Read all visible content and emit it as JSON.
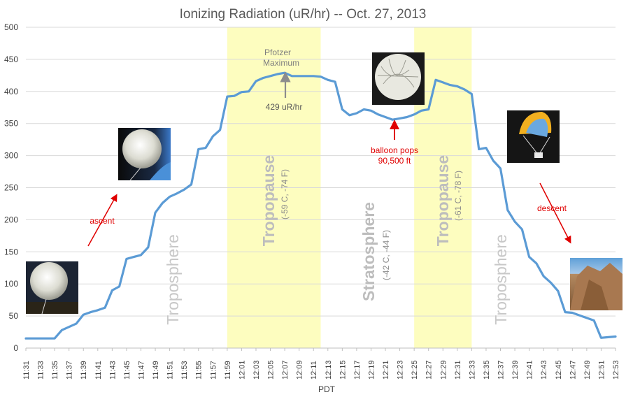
{
  "chart_data": {
    "type": "line",
    "title": "Ionizing Radiation (uR/hr) -- Oct. 27, 2013",
    "xlabel": "PDT",
    "ylabel": "",
    "ylim": [
      0,
      500
    ],
    "yticks": [
      0,
      50,
      100,
      150,
      200,
      250,
      300,
      350,
      400,
      450,
      500
    ],
    "grid": "horizontal",
    "x_tick_labels": [
      "11:31",
      "11:33",
      "11:35",
      "11:37",
      "11:39",
      "11:41",
      "11:43",
      "11:45",
      "11:47",
      "11:49",
      "11:51",
      "11:53",
      "11:55",
      "11:57",
      "11:59",
      "12:01",
      "12:03",
      "12:05",
      "12:07",
      "12:09",
      "12:11",
      "12:13",
      "12:15",
      "12:17",
      "12:19",
      "12:21",
      "12:23",
      "12:25",
      "12:27",
      "12:29",
      "12:31",
      "12:33",
      "12:35",
      "12:37",
      "12:39",
      "12:41",
      "12:43",
      "12:45",
      "12:47",
      "12:49",
      "12:51",
      "12:53"
    ],
    "series": [
      {
        "name": "",
        "color": "#5b9bd5",
        "x": [
          "11:31",
          "11:32",
          "11:33",
          "11:34",
          "11:35",
          "11:36",
          "11:37",
          "11:38",
          "11:39",
          "11:40",
          "11:41",
          "11:42",
          "11:43",
          "11:44",
          "11:45",
          "11:46",
          "11:47",
          "11:48",
          "11:49",
          "11:50",
          "11:51",
          "11:52",
          "11:53",
          "11:54",
          "11:55",
          "11:56",
          "11:57",
          "11:58",
          "11:59",
          "12:00",
          "12:01",
          "12:02",
          "12:03",
          "12:04",
          "12:05",
          "12:06",
          "12:07",
          "12:08",
          "12:09",
          "12:10",
          "12:11",
          "12:12",
          "12:13",
          "12:14",
          "12:15",
          "12:16",
          "12:17",
          "12:18",
          "12:19",
          "12:20",
          "12:21",
          "12:22",
          "12:23",
          "12:24",
          "12:25",
          "12:26",
          "12:27",
          "12:28",
          "12:29",
          "12:30",
          "12:31",
          "12:32",
          "12:33",
          "12:34",
          "12:35",
          "12:36",
          "12:37",
          "12:38",
          "12:39",
          "12:40",
          "12:41",
          "12:42",
          "12:43",
          "12:44",
          "12:45",
          "12:46",
          "12:47",
          "12:48",
          "12:49",
          "12:50",
          "12:51",
          "12:52",
          "12:53"
        ],
        "values": [
          15,
          15,
          15,
          15,
          15,
          28,
          33,
          38,
          52,
          56,
          59,
          63,
          90,
          96,
          139,
          142,
          145,
          157,
          211,
          226,
          236,
          241,
          247,
          255,
          310,
          312,
          330,
          340,
          392,
          393,
          399,
          400,
          416,
          421,
          424,
          427,
          429,
          424,
          424,
          424,
          424,
          423,
          418,
          415,
          372,
          363,
          366,
          372,
          370,
          364,
          360,
          356,
          358,
          360,
          364,
          370,
          372,
          418,
          414,
          410,
          408,
          403,
          396,
          310,
          312,
          292,
          280,
          215,
          197,
          185,
          142,
          132,
          112,
          102,
          89,
          56,
          55,
          51,
          47,
          43,
          16,
          17,
          18
        ]
      }
    ],
    "bands": [
      {
        "label": "Tropopause",
        "sublabel": "(-59 C, -74 F)",
        "x_start": "11:59",
        "x_end": "12:12",
        "color": "#fdfdbf"
      },
      {
        "label": "Tropopause",
        "sublabel": "(-61 C, -78 F)",
        "x_start": "12:25",
        "x_end": "12:33",
        "color": "#fdfdbf"
      }
    ],
    "zone_labels": [
      {
        "label": "Troposphere",
        "sublabel": ""
      },
      {
        "label": "Stratosphere",
        "sublabel": "(-42 C, -44 F)"
      },
      {
        "label": "Troposphere",
        "sublabel": ""
      }
    ],
    "annotations": {
      "pfotzer_line1": "Pfotzer",
      "pfotzer_line2": "Maximum",
      "pfotzer_value": "429 uR/hr",
      "pops_line1": "balloon pops",
      "pops_line2": "90,500 ft",
      "ascent": "ascent",
      "descent": "descent"
    },
    "photos": [
      "balloon-launch-photo",
      "balloon-ascent-photo",
      "balloon-burst-photo",
      "parachute-photo",
      "landing-site-photo"
    ]
  }
}
